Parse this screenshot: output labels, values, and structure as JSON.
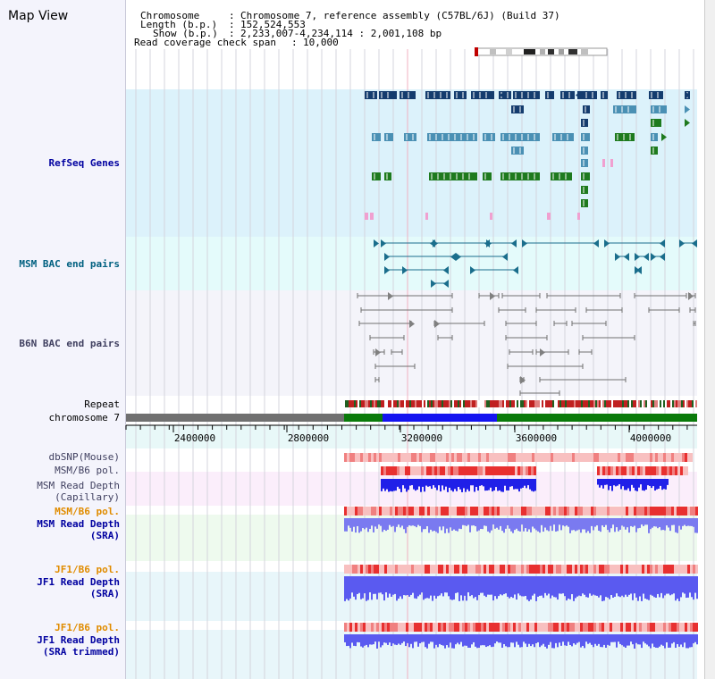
{
  "page": {
    "title": "Map View"
  },
  "header": {
    "chromosome_key": "Chromosome",
    "chromosome_val": "Chromosome 7, reference assembly (C57BL/6J) (Build 37)",
    "length_key": "Length (b.p.)",
    "length_val": "152,524,553",
    "show_key": "Show (b.p.)",
    "show_val": "2,233,007-4,234,114 : 2,001,108 bp",
    "span_key": "Read coverage check span",
    "span_val": "10,000"
  },
  "tracks": {
    "refseq": "RefSeq Genes",
    "msm_bac": "MSM BAC end pairs",
    "b6n_bac": "B6N BAC end pairs",
    "repeat": "Repeat",
    "chromosome": "chromosome 7",
    "dbsnp": "dbSNP(Mouse)",
    "msm_b6_pol_1": "MSM/B6 pol.",
    "msm_read_cap_1": "MSM Read Depth",
    "msm_read_cap_2": "(Capillary)",
    "msm_b6_pol_2": "MSM/B6 pol.",
    "msm_read_sra_1": "MSM Read Depth",
    "msm_read_sra_2": "(SRA)",
    "jf1_b6_pol_1": "JF1/B6 pol.",
    "jf1_read_sra_1": "JF1 Read Depth",
    "jf1_read_sra_2": "(SRA)",
    "jf1_b6_pol_2": "JF1/B6 pol.",
    "jf1_read_trim_1": "JF1 Read Depth",
    "jf1_read_trim_2": "(SRA trimmed)"
  },
  "axis": {
    "ticks": [
      "2400000",
      "2800000",
      "3200000",
      "3600000",
      "4000000"
    ]
  },
  "colors": {
    "refseq_bg": "#dcf2fb",
    "bac_bg": "#e4fbfb",
    "b6n_bg": "#f4f4fa",
    "gene_navy": "#143c6e",
    "gene_steel": "#4a90b4",
    "gene_green": "#1e7a1e",
    "gene_pink": "#f0a0d0",
    "bac_teal": "#1a6e8c",
    "bac_grey": "#707070",
    "chr_grey": "#707070",
    "chr_green": "#0a7a0a",
    "chr_blue": "#1414f0",
    "depth_blue": "#5050f0",
    "pol_red": "#e83030",
    "pol_pink": "#f8c0c0"
  }
}
